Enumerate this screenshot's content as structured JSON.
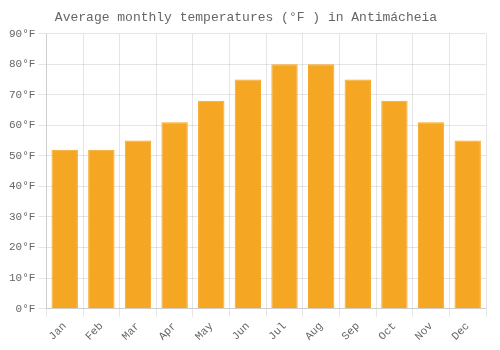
{
  "chart_data": {
    "type": "bar",
    "title": "Average monthly temperatures (°F ) in Antimácheia",
    "categories": [
      "Jan",
      "Feb",
      "Mar",
      "Apr",
      "May",
      "Jun",
      "Jul",
      "Aug",
      "Sep",
      "Oct",
      "Nov",
      "Dec"
    ],
    "values": [
      52,
      52,
      55,
      61,
      68,
      75,
      80,
      80,
      75,
      68,
      61,
      55
    ],
    "color": "#F5A623",
    "ylim": [
      0,
      90
    ],
    "yticks": [
      {
        "value": 0,
        "label": "0°F"
      },
      {
        "value": 10,
        "label": "10°F"
      },
      {
        "value": 20,
        "label": "20°F"
      },
      {
        "value": 30,
        "label": "30°F"
      },
      {
        "value": 40,
        "label": "40°F"
      },
      {
        "value": 50,
        "label": "50°F"
      },
      {
        "value": 60,
        "label": "60°F"
      },
      {
        "value": 70,
        "label": "70°F"
      },
      {
        "value": 80,
        "label": "80°F"
      },
      {
        "value": 90,
        "label": "90°F"
      }
    ],
    "grid": true
  }
}
